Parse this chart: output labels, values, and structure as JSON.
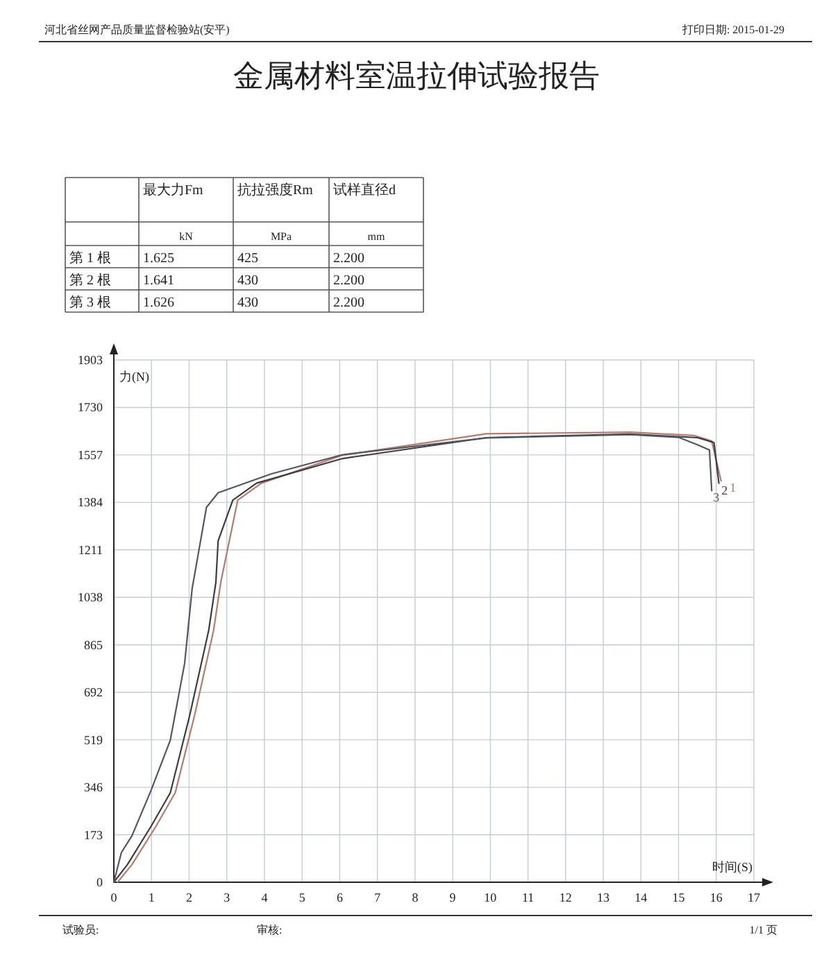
{
  "chart_data": [
    {
      "type": "other",
      "title": "金属材料室温拉伸试验报告",
      "annotations": [
        "河北省丝网产品质量监督检验站(安平)",
        "打印日期: 2015-01-29",
        "试验员:",
        "审核:",
        "1/1 页"
      ]
    },
    {
      "type": "other",
      "annotations": [
        "最大力Fm",
        "抗拉强度Rm",
        "试样直径d",
        "kN",
        "MPa",
        "mm",
        "第 1 根",
        "1.625",
        "425",
        "2.200",
        "第 2 根",
        "1.641",
        "430",
        "2.200",
        "第 3 根",
        "1.626",
        "430",
        "2.200"
      ]
    },
    {
      "type": "line",
      "xlabel": "时间(S)",
      "ylabel": "力(N)",
      "xlim": [
        0,
        17
      ],
      "ylim": [
        0,
        1903
      ],
      "xticks": [
        0,
        1,
        2,
        3,
        4,
        5,
        6,
        7,
        8,
        9,
        10,
        11,
        12,
        13,
        14,
        15,
        16,
        17
      ],
      "yticks": [
        0,
        173,
        346,
        519,
        692,
        865,
        1038,
        1211,
        1384,
        1557,
        1730,
        1903
      ],
      "grid": true,
      "series": [
        {
          "name": "1",
          "color": "#b87a6c",
          "x": [
            0.1,
            0.48,
            1.12,
            1.63,
            2.14,
            2.65,
            2.84,
            3.29,
            3.92,
            6.08,
            9.9,
            13.72,
            15.4,
            15.88,
            16.13
          ],
          "values": [
            0,
            64,
            204,
            326,
            605,
            918,
            1093,
            1392,
            1454,
            1556,
            1634,
            1640,
            1628,
            1608,
            1462
          ]
        },
        {
          "name": "2",
          "color": "#3c3c3c",
          "x": [
            0,
            0.36,
            0.99,
            1.5,
            2.01,
            2.52,
            2.71,
            2.77,
            3.16,
            3.79,
            6.08,
            9.9,
            13.72,
            15.5,
            15.94,
            16.07
          ],
          "values": [
            0,
            64,
            204,
            326,
            605,
            918,
            1093,
            1244,
            1392,
            1454,
            1544,
            1620,
            1633,
            1620,
            1602,
            1454
          ]
        },
        {
          "name": "3",
          "color": "#555560",
          "x": [
            0,
            0.2,
            0.48,
            0.99,
            1.5,
            1.88,
            2.08,
            2.46,
            2.77,
            4.18,
            6.08,
            9.9,
            13.72,
            15.0,
            15.5,
            15.82,
            15.88
          ],
          "values": [
            0,
            108,
            169,
            335,
            518,
            797,
            1070,
            1366,
            1419,
            1488,
            1558,
            1619,
            1631,
            1621,
            1594,
            1575,
            1427
          ]
        }
      ]
    }
  ]
}
